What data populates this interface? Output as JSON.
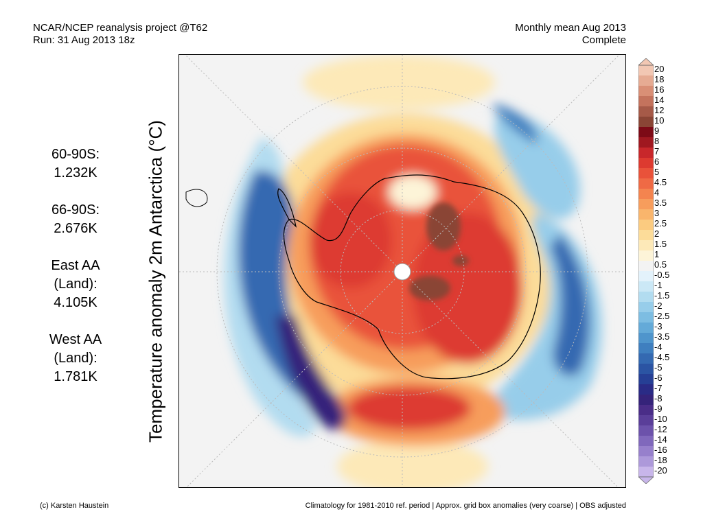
{
  "header": {
    "left_line1": "NCAR/NCEP reanalysis project @T62",
    "left_line2": "Run: 31 Aug 2013 18z",
    "right_line1": "Monthly mean Aug 2013",
    "right_line2": "Complete"
  },
  "title": "Temperature anomaly 2m Antarctica (°C)",
  "stats": [
    {
      "lines": [
        "60-90S:",
        "1.232K"
      ]
    },
    {
      "lines": [
        "66-90S:",
        "2.676K"
      ]
    },
    {
      "lines": [
        "East AA",
        "(Land):",
        "4.105K"
      ]
    },
    {
      "lines": [
        "West AA",
        "(Land):",
        "1.781K"
      ]
    }
  ],
  "colorbar": {
    "labels": [
      "20",
      "18",
      "16",
      "14",
      "12",
      "10",
      "9",
      "8",
      "7",
      "6",
      "5",
      "4.5",
      "4",
      "3.5",
      "3",
      "2.5",
      "2",
      "1.5",
      "1",
      "0.5",
      "-0.5",
      "-1",
      "-1.5",
      "-2",
      "-2.5",
      "-3",
      "-3.5",
      "-4",
      "-4.5",
      "-5",
      "-6",
      "-7",
      "-8",
      "-9",
      "-10",
      "-12",
      "-14",
      "-16",
      "-18",
      "-20"
    ],
    "colors": [
      "#f2c7b3",
      "#e6ab93",
      "#d98f76",
      "#c4735d",
      "#a65a48",
      "#8a4535",
      "#7d0a16",
      "#a01820",
      "#c8272b",
      "#dd3a30",
      "#e9523a",
      "#ef6a45",
      "#f4844f",
      "#f79d5c",
      "#f9b56c",
      "#fbcb80",
      "#fcdc99",
      "#fde9b8",
      "#fdf4d8",
      "#f3f3f3",
      "#e3f2fb",
      "#cbe8f6",
      "#b2dcf0",
      "#97cdea",
      "#7dbde2",
      "#64aad8",
      "#4f95cc",
      "#3f7fbf",
      "#3469b1",
      "#2b54a3",
      "#263f95",
      "#2a2b86",
      "#35237a",
      "#4a2d88",
      "#5a3e99",
      "#6c52ab",
      "#8068bc",
      "#9780cc",
      "#ad99da",
      "#c8b6ea"
    ]
  },
  "footer": {
    "left": "(c) Karsten Haustein",
    "right": "Climatology for 1981-2010 ref. period | Approx. grid box anomalies (very coarse) | OBS adjusted"
  }
}
